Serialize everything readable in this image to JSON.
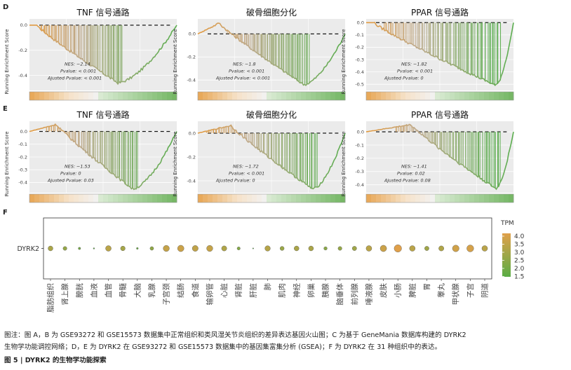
{
  "panel_letters": {
    "d": "D",
    "e": "E",
    "f": "F"
  },
  "gsea_axis": {
    "ylabel": "Running Enrichment Score"
  },
  "chart_data": [
    {
      "id": "D1",
      "type": "line",
      "title": "TNF 信号通路",
      "ylabel": "Running Enrichment Score",
      "yticks": [
        0.0,
        -0.2,
        -0.4
      ],
      "ylim": [
        -0.52,
        0.05
      ],
      "min_score": -0.46,
      "min_at": 0.6,
      "peak": 0.0,
      "up_to": 0.05,
      "hit_from": 0.08,
      "stats": [
        "NES: −2.14",
        "Pvalue: < 0.001",
        "Ajusted Pvalue: < 0.001"
      ]
    },
    {
      "id": "D2",
      "type": "line",
      "title": "破骨细胞分化",
      "ylabel": "Running Enrichment Score",
      "yticks": [
        0.0,
        -0.2,
        -0.4
      ],
      "ylim": [
        -0.49,
        0.13
      ],
      "min_score": -0.44,
      "min_at": 0.72,
      "peak": 0.1,
      "up_to": 0.14,
      "hit_from": 0.2,
      "stats": [
        "NES: −1.8",
        "Pvalue: < 0.001",
        "Ajusted Pvalue: < 0.001"
      ]
    },
    {
      "id": "D3",
      "type": "line",
      "title": "PPAR 信号通路",
      "ylabel": "Running Enrichment Score",
      "yticks": [
        0.0,
        -0.1,
        -0.2,
        -0.3,
        -0.4,
        -0.5
      ],
      "ylim": [
        -0.55,
        0.03
      ],
      "min_score": -0.51,
      "min_at": 0.88,
      "peak": 0.0,
      "up_to": 0.05,
      "hit_from": 0.12,
      "stats": [
        "NES: −1.82",
        "Pvalue: < 0.001",
        "Ajusted Pvalue: 0"
      ]
    },
    {
      "id": "E1",
      "type": "line",
      "title": "TNF 信号通路",
      "ylabel": "Running Enrichment Score",
      "yticks": [
        0.0,
        -0.1,
        -0.2,
        -0.3,
        -0.4
      ],
      "ylim": [
        -0.48,
        0.08
      ],
      "min_score": -0.45,
      "min_at": 0.7,
      "peak": 0.06,
      "up_to": 0.18,
      "hit_from": 0.12,
      "stats": [
        "NES: −1.53",
        "Pvalue: 0",
        "Ajusted Pvalue: 0.03"
      ]
    },
    {
      "id": "E2",
      "type": "line",
      "title": "破骨细胞分化",
      "ylabel": "Running Enrichment Score",
      "yticks": [
        0.0,
        -0.2,
        -0.4
      ],
      "ylim": [
        -0.5,
        0.1
      ],
      "min_score": -0.47,
      "min_at": 0.78,
      "peak": 0.07,
      "up_to": 0.22,
      "hit_from": 0.06,
      "stats": [
        "NES: −1.72",
        "Pvalue: < 0.001",
        "Ajusted Pvalue: 0"
      ]
    },
    {
      "id": "E3",
      "type": "line",
      "title": "PPAR 信号通路",
      "ylabel": "Running Enrichment Score",
      "yticks": [
        0.0,
        -0.1,
        -0.2,
        -0.3,
        -0.4
      ],
      "ylim": [
        -0.46,
        0.08
      ],
      "min_score": -0.43,
      "min_at": 0.88,
      "peak": 0.06,
      "up_to": 0.3,
      "hit_from": 0.2,
      "stats": [
        "NES: −1.41",
        "Pvalue: 0.02",
        "Ajusted Pvalue: 0.08"
      ]
    },
    {
      "id": "F",
      "type": "scatter",
      "gene": "DYRK2",
      "categories": [
        "脂肪组织",
        "肾上腺",
        "膀胱",
        "血液",
        "血管",
        "骨髓",
        "大脑",
        "乳腺",
        "子宫颈",
        "结肠",
        "食道",
        "输卵管",
        "心脏",
        "肾脏",
        "肝脏",
        "肺",
        "肌肉",
        "神经",
        "卵巢",
        "胰腺",
        "脑垂体",
        "前列腺",
        "唾液腺",
        "皮肤",
        "小肠",
        "脾脏",
        "胃",
        "睾丸",
        "甲状腺",
        "子宫",
        "阴道"
      ],
      "values": [
        3.0,
        2.6,
        2.0,
        1.6,
        3.3,
        2.9,
        1.8,
        2.5,
        3.5,
        3.6,
        3.4,
        3.5,
        3.1,
        2.3,
        1.5,
        3.2,
        2.7,
        3.0,
        3.0,
        2.4,
        2.6,
        2.8,
        3.3,
        3.6,
        4.0,
        3.3,
        2.8,
        3.1,
        3.7,
        3.8,
        3.3
      ],
      "legend_title": "TPM",
      "legend_ticks": [
        "4.0",
        "3.5",
        "3.0",
        "2.5",
        "2.0",
        "1.5"
      ],
      "color_low": "#5aad45",
      "color_high": "#e0a04a"
    }
  ],
  "colors": {
    "up": "#e39a3e",
    "down": "#5aad4e",
    "mid": "#bda98a",
    "panel": "#ebebeb",
    "grid": "#ffffff"
  },
  "caption": {
    "line1": "图注：图 A，B 为 GSE93272 和 GSE15573 数据集中正常组织和类风湿关节炎组织的差异表达基因火山图；C 为基于 GeneMania 数据库构建的 DYRK2",
    "line2": "生物学功能调控网络；D，E 为 DYRK2 在 GSE93272 和 GSE15573 数据集中的基因集富集分析 (GSEA)；F 为 DYRK2 在 31 种组织中的表达。",
    "figure_title": "图 5 | DYRK2 的生物学功能探索"
  }
}
